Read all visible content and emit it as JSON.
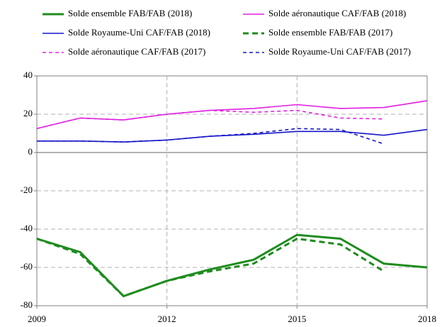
{
  "chart_data": {
    "type": "line",
    "x": [
      2009,
      2010,
      2011,
      2012,
      2013,
      2014,
      2015,
      2016,
      2017,
      2018
    ],
    "series": [
      {
        "name": "Solde ensemble FAB/FAB (2018)",
        "color": "#1e8c1e",
        "dashed": false,
        "values": [
          -45,
          -52,
          -75,
          -67,
          -61,
          -56,
          -43,
          -45,
          -58,
          -60
        ]
      },
      {
        "name": "Solde aéronautique CAF/FAB (2018)",
        "color": "#e020e0",
        "dashed": false,
        "values": [
          12.5,
          18,
          17,
          20,
          22,
          23,
          25,
          23,
          23.5,
          27
        ]
      },
      {
        "name": "Solde Royaume-Uni CAF/FAB (2018)",
        "color": "#1414c8",
        "dashed": false,
        "values": [
          6,
          6,
          5.5,
          6.5,
          8.5,
          9.5,
          11,
          11,
          9,
          12
        ]
      },
      {
        "name": "Solde ensemble FAB/FAB (2017)",
        "color": "#1e8c1e",
        "dashed": true,
        "values": [
          -45,
          -53,
          -75,
          -67,
          -62,
          -58,
          -45,
          -48,
          -62,
          null
        ]
      },
      {
        "name": "Solde aéronautique CAF/FAB (2017)",
        "color": "#e020e0",
        "dashed": true,
        "values": [
          12.5,
          18,
          17,
          20,
          22,
          21,
          22,
          18,
          17.5,
          null
        ]
      },
      {
        "name": "Solde Royaume-Uni CAF/FAB (2017)",
        "color": "#1414c8",
        "dashed": true,
        "values": [
          6,
          6,
          5.5,
          6.5,
          8.5,
          10,
          12.5,
          12,
          4.5,
          null
        ]
      }
    ],
    "xlim": [
      2009,
      2018
    ],
    "xticks": [
      2009,
      2012,
      2015,
      2018
    ],
    "ylim": [
      -80,
      40
    ],
    "yticks": [
      -80,
      -60,
      -40,
      -20,
      0,
      20,
      40
    ],
    "grid": true
  }
}
